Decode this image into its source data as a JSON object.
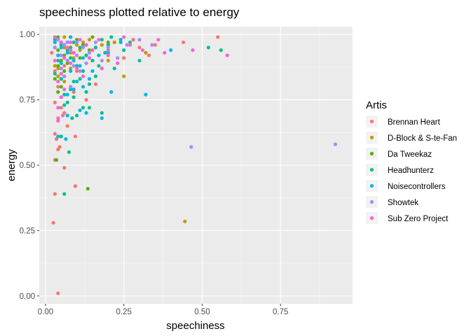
{
  "chart_data": {
    "type": "scatter",
    "title": "speechiness plotted relative to energy",
    "xlabel": "speechiness",
    "ylabel": "energy",
    "xlim": [
      -0.02,
      0.98
    ],
    "ylim": [
      -0.03,
      1.03
    ],
    "x_ticks": [
      0.0,
      0.25,
      0.5,
      0.75
    ],
    "x_tick_labels": [
      "0.00",
      "0.25",
      "0.50",
      "0.75"
    ],
    "y_ticks": [
      0.0,
      0.25,
      0.5,
      0.75,
      1.0
    ],
    "y_tick_labels": [
      "0.00",
      "0.25",
      "0.50",
      "0.75",
      "1.00"
    ],
    "grid": true,
    "legend": {
      "title": "Artis",
      "placement": "right"
    },
    "series": [
      {
        "name": "Brennan Heart",
        "color": "#F8766D",
        "points": [
          [
            0.03,
            0.99
          ],
          [
            0.05,
            0.97
          ],
          [
            0.08,
            0.95
          ],
          [
            0.04,
            0.92
          ],
          [
            0.06,
            0.88
          ],
          [
            0.03,
            0.86
          ],
          [
            0.05,
            0.83
          ],
          [
            0.04,
            0.8
          ],
          [
            0.09,
            0.78
          ],
          [
            0.03,
            0.74
          ],
          [
            0.05,
            0.72
          ],
          [
            0.06,
            0.7
          ],
          [
            0.04,
            0.68
          ],
          [
            0.07,
            0.65
          ],
          [
            0.035,
            0.6
          ],
          [
            0.03,
            0.62
          ],
          [
            0.045,
            0.57
          ],
          [
            0.04,
            0.56
          ],
          [
            0.03,
            0.52
          ],
          [
            0.06,
            0.49
          ],
          [
            0.03,
            0.39
          ],
          [
            0.095,
            0.42
          ],
          [
            0.095,
            0.61
          ],
          [
            0.025,
            0.28
          ],
          [
            0.04,
            0.01
          ],
          [
            0.12,
            0.96
          ],
          [
            0.15,
            0.9
          ],
          [
            0.2,
            0.94
          ],
          [
            0.25,
            0.91
          ],
          [
            0.3,
            0.95
          ],
          [
            0.35,
            0.96
          ],
          [
            0.44,
            0.97
          ],
          [
            0.55,
            0.99
          ],
          [
            0.13,
            0.75
          ],
          [
            0.18,
            0.87
          ],
          [
            0.22,
            0.97
          ],
          [
            0.1,
            0.86
          ],
          [
            0.05,
            0.76
          ],
          [
            0.02,
            0.93
          ],
          [
            0.28,
            0.98
          ],
          [
            0.33,
            0.92
          ],
          [
            0.16,
            0.81
          ]
        ]
      },
      {
        "name": "D-Block & S-te-Fan",
        "color": "#C49A00",
        "points": [
          [
            0.04,
            0.98
          ],
          [
            0.06,
            0.95
          ],
          [
            0.05,
            0.92
          ],
          [
            0.07,
            0.9
          ],
          [
            0.03,
            0.88
          ],
          [
            0.08,
            0.93
          ],
          [
            0.1,
            0.96
          ],
          [
            0.12,
            0.97
          ],
          [
            0.05,
            0.85
          ],
          [
            0.06,
            0.82
          ],
          [
            0.04,
            0.87
          ],
          [
            0.09,
            0.91
          ],
          [
            0.11,
            0.94
          ],
          [
            0.14,
            0.98
          ],
          [
            0.16,
            0.95
          ],
          [
            0.2,
            0.9
          ],
          [
            0.25,
            0.84
          ],
          [
            0.32,
            0.93
          ],
          [
            0.445,
            0.285
          ],
          [
            0.07,
            0.97
          ],
          [
            0.03,
            0.95
          ],
          [
            0.08,
            0.87
          ],
          [
            0.05,
            0.89
          ],
          [
            0.06,
            0.99
          ],
          [
            0.13,
            0.92
          ],
          [
            0.18,
            0.96
          ],
          [
            0.04,
            0.84
          ],
          [
            0.1,
            0.88
          ],
          [
            0.22,
            0.97
          ]
        ]
      },
      {
        "name": "Da Tweekaz",
        "color": "#53B400",
        "points": [
          [
            0.03,
            0.97
          ],
          [
            0.05,
            0.96
          ],
          [
            0.04,
            0.94
          ],
          [
            0.06,
            0.92
          ],
          [
            0.07,
            0.97
          ],
          [
            0.08,
            0.95
          ],
          [
            0.1,
            0.98
          ],
          [
            0.12,
            0.96
          ],
          [
            0.05,
            0.9
          ],
          [
            0.04,
            0.88
          ],
          [
            0.06,
            0.86
          ],
          [
            0.03,
            0.83
          ],
          [
            0.05,
            0.8
          ],
          [
            0.04,
            0.78
          ],
          [
            0.035,
            0.52
          ],
          [
            0.135,
            0.41
          ],
          [
            0.09,
            0.93
          ],
          [
            0.15,
            0.99
          ],
          [
            0.2,
            0.97
          ],
          [
            0.11,
            0.91
          ],
          [
            0.07,
            0.89
          ],
          [
            0.04,
            0.99
          ],
          [
            0.06,
            0.84
          ],
          [
            0.08,
            0.99
          ],
          [
            0.14,
            0.94
          ]
        ]
      },
      {
        "name": "Headhunterz",
        "color": "#00C094",
        "points": [
          [
            0.03,
            0.98
          ],
          [
            0.05,
            0.96
          ],
          [
            0.07,
            0.94
          ],
          [
            0.09,
            0.97
          ],
          [
            0.11,
            0.95
          ],
          [
            0.13,
            0.92
          ],
          [
            0.15,
            0.9
          ],
          [
            0.18,
            0.98
          ],
          [
            0.2,
            0.96
          ],
          [
            0.24,
            0.98
          ],
          [
            0.27,
            0.97
          ],
          [
            0.1,
            0.88
          ],
          [
            0.12,
            0.86
          ],
          [
            0.16,
            0.84
          ],
          [
            0.14,
            0.81
          ],
          [
            0.08,
            0.79
          ],
          [
            0.06,
            0.77
          ],
          [
            0.09,
            0.76
          ],
          [
            0.07,
            0.74
          ],
          [
            0.12,
            0.72
          ],
          [
            0.14,
            0.72
          ],
          [
            0.1,
            0.69
          ],
          [
            0.085,
            0.68
          ],
          [
            0.05,
            0.61
          ],
          [
            0.075,
            0.55
          ],
          [
            0.06,
            0.39
          ],
          [
            0.52,
            0.95
          ],
          [
            0.56,
            0.94
          ],
          [
            0.18,
            0.7
          ],
          [
            0.22,
            0.87
          ],
          [
            0.3,
            0.9
          ],
          [
            0.04,
            0.9
          ],
          [
            0.03,
            0.85
          ],
          [
            0.05,
            0.83
          ],
          [
            0.19,
            0.93
          ],
          [
            0.25,
            0.94
          ],
          [
            0.11,
            0.83
          ],
          [
            0.08,
            0.91
          ],
          [
            0.06,
            0.73
          ],
          [
            0.13,
            0.78
          ],
          [
            0.17,
            0.88
          ],
          [
            0.16,
            0.95
          ],
          [
            0.21,
            0.99
          ],
          [
            0.09,
            0.82
          ]
        ]
      },
      {
        "name": "Noisecontrollers",
        "color": "#00B6EB",
        "points": [
          [
            0.03,
            0.97
          ],
          [
            0.05,
            0.95
          ],
          [
            0.07,
            0.93
          ],
          [
            0.09,
            0.9
          ],
          [
            0.11,
            0.88
          ],
          [
            0.08,
            0.86
          ],
          [
            0.06,
            0.84
          ],
          [
            0.1,
            0.82
          ],
          [
            0.12,
            0.8
          ],
          [
            0.09,
            0.79
          ],
          [
            0.07,
            0.77
          ],
          [
            0.11,
            0.71
          ],
          [
            0.13,
            0.7
          ],
          [
            0.07,
            0.69
          ],
          [
            0.065,
            0.6
          ],
          [
            0.04,
            0.61
          ],
          [
            0.18,
            0.68
          ],
          [
            0.21,
            0.78
          ],
          [
            0.32,
            0.77
          ],
          [
            0.4,
            0.94
          ],
          [
            0.15,
            0.86
          ],
          [
            0.17,
            0.92
          ],
          [
            0.13,
            0.96
          ],
          [
            0.2,
            0.93
          ],
          [
            0.04,
            0.92
          ],
          [
            0.05,
            0.89
          ],
          [
            0.1,
            0.97
          ],
          [
            0.14,
            0.83
          ],
          [
            0.24,
            0.97
          ],
          [
            0.08,
            0.99
          ],
          [
            0.12,
            0.91
          ]
        ]
      },
      {
        "name": "Showtek",
        "color": "#A58AFF",
        "points": [
          [
            0.04,
            0.98
          ],
          [
            0.06,
            0.96
          ],
          [
            0.08,
            0.94
          ],
          [
            0.1,
            0.97
          ],
          [
            0.12,
            0.95
          ],
          [
            0.05,
            0.92
          ],
          [
            0.07,
            0.9
          ],
          [
            0.09,
            0.88
          ],
          [
            0.11,
            0.86
          ],
          [
            0.06,
            0.84
          ],
          [
            0.04,
            0.82
          ],
          [
            0.08,
            0.8
          ],
          [
            0.14,
            0.93
          ],
          [
            0.16,
            0.97
          ],
          [
            0.2,
            0.95
          ],
          [
            0.23,
            0.91
          ],
          [
            0.26,
            0.96
          ],
          [
            0.3,
            0.98
          ],
          [
            0.34,
            0.96
          ],
          [
            0.465,
            0.57
          ],
          [
            0.925,
            0.58
          ],
          [
            0.05,
            0.87
          ],
          [
            0.13,
            0.89
          ],
          [
            0.18,
            0.9
          ],
          [
            0.1,
            0.92
          ],
          [
            0.03,
            0.95
          ],
          [
            0.07,
            0.97
          ]
        ]
      },
      {
        "name": "Sub Zero Project",
        "color": "#FB61D7",
        "points": [
          [
            0.03,
            0.99
          ],
          [
            0.05,
            0.97
          ],
          [
            0.07,
            0.95
          ],
          [
            0.09,
            0.93
          ],
          [
            0.11,
            0.98
          ],
          [
            0.13,
            0.96
          ],
          [
            0.06,
            0.91
          ],
          [
            0.08,
            0.89
          ],
          [
            0.1,
            0.87
          ],
          [
            0.05,
            0.85
          ],
          [
            0.04,
            0.82
          ],
          [
            0.06,
            0.79
          ],
          [
            0.05,
            0.76
          ],
          [
            0.04,
            0.72
          ],
          [
            0.055,
            0.69
          ],
          [
            0.04,
            0.67
          ],
          [
            0.15,
            0.94
          ],
          [
            0.17,
            0.98
          ],
          [
            0.2,
            0.92
          ],
          [
            0.23,
            0.89
          ],
          [
            0.27,
            0.96
          ],
          [
            0.31,
            0.94
          ],
          [
            0.36,
            0.98
          ],
          [
            0.47,
            0.94
          ],
          [
            0.58,
            0.92
          ],
          [
            0.12,
            0.84
          ],
          [
            0.08,
            0.97
          ],
          [
            0.03,
            0.9
          ],
          [
            0.18,
            0.87
          ],
          [
            0.25,
            0.99
          ],
          [
            0.38,
            0.93
          ],
          [
            0.14,
            0.91
          ]
        ]
      }
    ]
  }
}
